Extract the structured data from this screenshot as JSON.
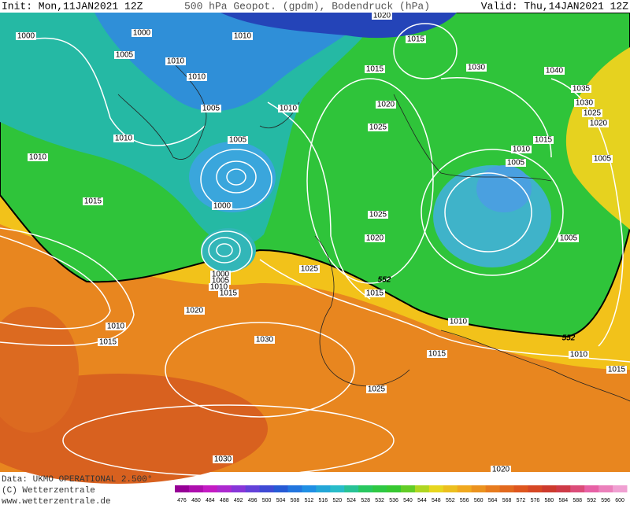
{
  "header": {
    "init": "Init: Mon,11JAN2021 12Z",
    "title": "500 hPa Geopot. (gpdm), Bodendruck (hPa)",
    "valid": "Valid: Thu,14JAN2021 12Z"
  },
  "isobar_labels": [
    "1000",
    "1000",
    "1005",
    "1010",
    "1010",
    "1010",
    "1020",
    "1015",
    "1015",
    "1030",
    "1040",
    "1035",
    "1030",
    "1025",
    "1020",
    "1005",
    "1010",
    "1020",
    "1025",
    "1010",
    "1005",
    "1015",
    "1010",
    "1005",
    "1005",
    "1010",
    "1015",
    "1000",
    "1025",
    "1020",
    "1005",
    "1025",
    "552",
    "1000",
    "1005",
    "1010",
    "1015",
    "1015",
    "1020",
    "1010",
    "1010",
    "1015",
    "1030",
    "552",
    "1015",
    "1010",
    "1015",
    "1025",
    "1030",
    "1020"
  ],
  "footer": {
    "source": "Data: UKMO OPERATIONAL 2.500°",
    "copyright": "(C) Wetterzentrale",
    "url": "www.wetterzentrale.de"
  },
  "colorbar_labels": [
    "476",
    "480",
    "484",
    "488",
    "492",
    "496",
    "500",
    "504",
    "508",
    "512",
    "516",
    "520",
    "524",
    "528",
    "532",
    "536",
    "540",
    "544",
    "548",
    "552",
    "556",
    "560",
    "564",
    "568",
    "572",
    "576",
    "580",
    "584",
    "588",
    "592",
    "596",
    "600"
  ]
}
